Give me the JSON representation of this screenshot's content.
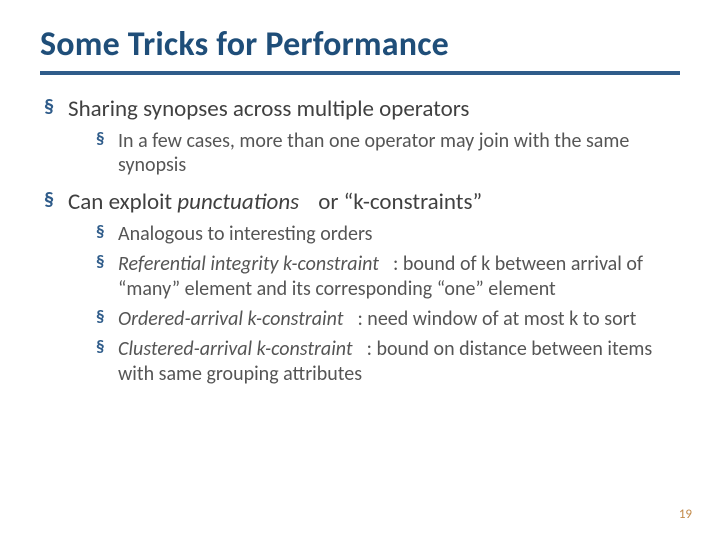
{
  "colors": {
    "title": "#1f4e79",
    "rule": "#2f5c8a",
    "bullet": "#2f5c8a",
    "text_primary": "#404040",
    "text_secondary": "#555555",
    "page_number": "#c28a4a",
    "background": "#ffffff"
  },
  "typography": {
    "title_fontsize": 34,
    "level1_fontsize": 23,
    "level2_fontsize": 20,
    "pagenum_fontsize": 13,
    "font_family": "Gill Sans"
  },
  "title": "Some Tricks for Performance",
  "b1": "Sharing synopses across multiple operators",
  "b1_1": "In a few cases, more than one operator may join with the same synopsis",
  "b2_pre": "Can exploit ",
  "b2_em": "punctuations",
  "b2_post": " or “k-constraints”",
  "b2_1": "Analogous to interesting orders",
  "b2_2_em": "Referential integrity k-constraint",
  "b2_2_rest": ":  bound of k between arrival of “many” element and its corresponding “one” element",
  "b2_3_em": "Ordered-arrival k-constraint",
  "b2_3_rest": ":  need window of at most k to sort",
  "b2_4_em": "Clustered-arrival k-constraint",
  "b2_4_rest": ": bound on distance between items with same grouping attributes",
  "page_number": "19"
}
